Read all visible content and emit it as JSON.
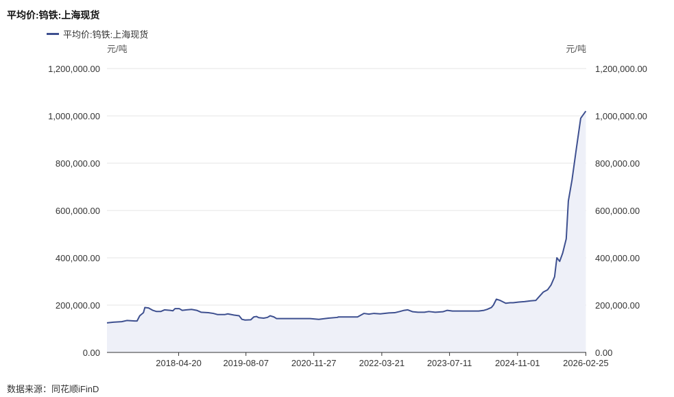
{
  "title": "平均价:钨铁:上海现货",
  "legend": {
    "label": "平均价:钨铁:上海现货"
  },
  "source": "数据来源：同花顺iFinD",
  "colors": {
    "line": "#3d4f8f",
    "area": "#eef0f8",
    "grid": "#e6e6e6",
    "axis": "#333333"
  },
  "chart_data": {
    "type": "area",
    "title": "平均价:钨铁:上海现货",
    "y_unit_left": "元/吨",
    "y_unit_right": "元/吨",
    "ylim": [
      0,
      1200000
    ],
    "y_ticks": [
      "0.00",
      "200,000.00",
      "400,000.00",
      "600,000.00",
      "800,000.00",
      "1,000,000.00",
      "1,200,000.00"
    ],
    "y_tick_values": [
      0,
      200000,
      400000,
      600000,
      800000,
      1000000,
      1200000
    ],
    "x_ticks": [
      "2018-04-20",
      "2019-08-07",
      "2020-11-27",
      "2022-03-21",
      "2023-07-11",
      "2024-11-01",
      "2026-02-25"
    ],
    "xlim": [
      "2016-12-01",
      "2026-02-28"
    ],
    "grid": true,
    "series": [
      {
        "name": "平均价:钨铁:上海现货",
        "points": [
          [
            "2016-12-01",
            125000
          ],
          [
            "2017-01-15",
            128000
          ],
          [
            "2017-03-15",
            130000
          ],
          [
            "2017-04-20",
            135000
          ],
          [
            "2017-06-15",
            133000
          ],
          [
            "2017-07-01",
            133000
          ],
          [
            "2017-07-20",
            155000
          ],
          [
            "2017-08-15",
            168000
          ],
          [
            "2017-08-25",
            190000
          ],
          [
            "2017-09-20",
            188000
          ],
          [
            "2017-10-20",
            178000
          ],
          [
            "2017-11-15",
            173000
          ],
          [
            "2017-12-15",
            173000
          ],
          [
            "2018-01-10",
            180000
          ],
          [
            "2018-02-20",
            178000
          ],
          [
            "2018-03-10",
            176000
          ],
          [
            "2018-03-25",
            185000
          ],
          [
            "2018-04-25",
            185000
          ],
          [
            "2018-05-15",
            178000
          ],
          [
            "2018-06-15",
            180000
          ],
          [
            "2018-07-20",
            182000
          ],
          [
            "2018-08-25",
            178000
          ],
          [
            "2018-09-25",
            170000
          ],
          [
            "2018-11-15",
            168000
          ],
          [
            "2018-12-20",
            165000
          ],
          [
            "2019-01-20",
            160000
          ],
          [
            "2019-03-10",
            160000
          ],
          [
            "2019-04-01",
            163000
          ],
          [
            "2019-05-15",
            158000
          ],
          [
            "2019-06-20",
            155000
          ],
          [
            "2019-07-10",
            140000
          ],
          [
            "2019-08-01",
            137000
          ],
          [
            "2019-09-10",
            138000
          ],
          [
            "2019-10-01",
            150000
          ],
          [
            "2019-10-20",
            152000
          ],
          [
            "2019-11-05",
            147000
          ],
          [
            "2019-12-10",
            145000
          ],
          [
            "2020-01-05",
            148000
          ],
          [
            "2020-01-25",
            155000
          ],
          [
            "2020-02-20",
            150000
          ],
          [
            "2020-03-10",
            143000
          ],
          [
            "2020-05-01",
            143000
          ],
          [
            "2020-08-01",
            143000
          ],
          [
            "2020-11-01",
            143000
          ],
          [
            "2021-01-01",
            140000
          ],
          [
            "2021-03-10",
            145000
          ],
          [
            "2021-05-10",
            148000
          ],
          [
            "2021-05-20",
            150000
          ],
          [
            "2021-07-01",
            150000
          ],
          [
            "2021-09-01",
            150000
          ],
          [
            "2021-10-01",
            150000
          ],
          [
            "2021-11-15",
            165000
          ],
          [
            "2021-12-20",
            162000
          ],
          [
            "2022-01-25",
            165000
          ],
          [
            "2022-03-10",
            163000
          ],
          [
            "2022-05-10",
            167000
          ],
          [
            "2022-06-20",
            168000
          ],
          [
            "2022-07-25",
            173000
          ],
          [
            "2022-08-25",
            178000
          ],
          [
            "2022-09-20",
            180000
          ],
          [
            "2022-10-25",
            172000
          ],
          [
            "2022-12-01",
            170000
          ],
          [
            "2023-01-15",
            170000
          ],
          [
            "2023-02-15",
            173000
          ],
          [
            "2023-04-01",
            170000
          ],
          [
            "2023-05-25",
            172000
          ],
          [
            "2023-06-25",
            178000
          ],
          [
            "2023-08-01",
            175000
          ],
          [
            "2023-10-01",
            175000
          ],
          [
            "2023-12-01",
            175000
          ],
          [
            "2024-02-01",
            175000
          ],
          [
            "2024-03-10",
            178000
          ],
          [
            "2024-04-01",
            182000
          ],
          [
            "2024-05-01",
            190000
          ],
          [
            "2024-05-15",
            200000
          ],
          [
            "2024-06-05",
            225000
          ],
          [
            "2024-07-01",
            220000
          ],
          [
            "2024-08-10",
            208000
          ],
          [
            "2024-09-10",
            210000
          ],
          [
            "2024-10-01",
            210000
          ],
          [
            "2024-11-10",
            213000
          ],
          [
            "2024-12-20",
            215000
          ],
          [
            "2025-02-01",
            218000
          ],
          [
            "2025-03-10",
            220000
          ],
          [
            "2025-04-01",
            235000
          ],
          [
            "2025-05-01",
            255000
          ],
          [
            "2025-06-01",
            265000
          ],
          [
            "2025-06-25",
            285000
          ],
          [
            "2025-07-20",
            320000
          ],
          [
            "2025-08-05",
            400000
          ],
          [
            "2025-08-25",
            385000
          ],
          [
            "2025-09-15",
            420000
          ],
          [
            "2025-10-10",
            480000
          ],
          [
            "2025-10-25",
            640000
          ],
          [
            "2025-11-20",
            730000
          ],
          [
            "2025-12-20",
            860000
          ],
          [
            "2026-01-20",
            990000
          ],
          [
            "2026-02-25",
            1020000
          ]
        ]
      }
    ]
  }
}
